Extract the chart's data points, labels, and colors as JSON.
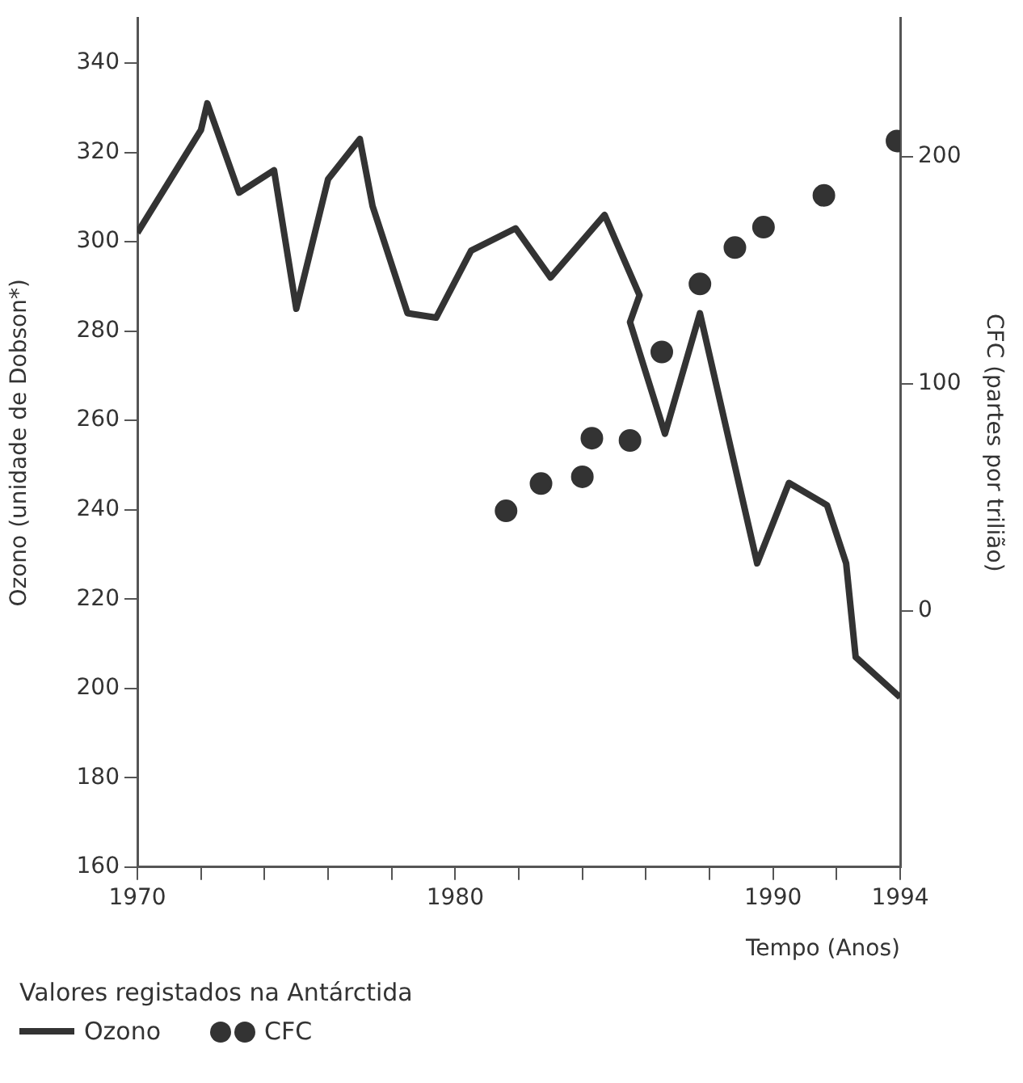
{
  "chart_data": {
    "type": "line",
    "xlabel": "Tempo (Anos)",
    "ylabel": "Ozono (unidade de Dobson*)",
    "y2label": "CFC (partes por trilião)",
    "legend_title": "Valores registados na Antárctida",
    "legend": "bottom left",
    "grid": false,
    "xlim": [
      1970,
      1994
    ],
    "xticks": [
      1970,
      {
        "value": 1972,
        "label": null
      },
      {
        "value": 1974,
        "label": null
      },
      {
        "value": 1976,
        "label": null
      },
      {
        "value": 1978,
        "label": null
      },
      1980,
      {
        "value": 1982,
        "label": null
      },
      {
        "value": 1984,
        "label": null
      },
      {
        "value": 1986,
        "label": null
      },
      {
        "value": 1988,
        "label": null
      },
      1990,
      {
        "value": 1992,
        "label": null
      },
      1994
    ],
    "ylim": [
      160,
      350
    ],
    "yticks": [
      160,
      180,
      200,
      220,
      240,
      260,
      280,
      300,
      320,
      340
    ],
    "y2lim": [
      -113,
      261
    ],
    "y2ticks": [
      0,
      100,
      200
    ],
    "series": [
      {
        "name": "Ozono",
        "type": "line",
        "color": "#333333",
        "marker": "none",
        "line_style": "solid",
        "x": [
          1970,
          1972,
          1972.2,
          1973.2,
          1974.3,
          1975,
          1976,
          1977,
          1977.4,
          1978.5,
          1979.4,
          1980.5,
          1981.9,
          1983,
          1984.7,
          1985.8,
          1985.5,
          1986.6,
          1987.7,
          1989.5,
          1990.5,
          1991.7,
          1992.3,
          1992.6,
          1994
        ],
        "values": [
          302,
          325,
          331,
          311,
          316,
          285,
          314,
          323,
          308,
          284,
          283,
          298,
          303,
          292,
          306,
          288,
          282,
          257,
          284,
          228,
          246,
          241,
          228,
          207,
          198
        ]
      },
      {
        "name": "CFC",
        "type": "scatter",
        "axis": "y2",
        "color": "#333333",
        "marker": "circle",
        "x": [
          1981.6,
          1982.7,
          1984,
          1984.3,
          1985.5,
          1986.5,
          1987.7,
          1988.8,
          1989.7,
          1991.6,
          1993.9
        ],
        "values": [
          44,
          56,
          59,
          76,
          75,
          114,
          144,
          160,
          169,
          183,
          207
        ]
      }
    ]
  }
}
